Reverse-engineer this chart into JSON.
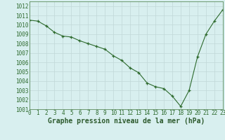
{
  "x": [
    0,
    1,
    2,
    3,
    4,
    5,
    6,
    7,
    8,
    9,
    10,
    11,
    12,
    13,
    14,
    15,
    16,
    17,
    18,
    19,
    20,
    21,
    22,
    23
  ],
  "y": [
    1010.5,
    1010.4,
    1009.9,
    1009.2,
    1008.8,
    1008.7,
    1008.3,
    1008.0,
    1007.7,
    1007.4,
    1006.7,
    1006.2,
    1005.4,
    1004.9,
    1003.8,
    1003.4,
    1003.2,
    1002.4,
    1001.3,
    1003.0,
    1006.6,
    1009.0,
    1010.4,
    1011.6
  ],
  "line_color": "#2d6a2d",
  "marker": "+",
  "bg_color": "#d8efef",
  "grid_color": "#c0d8d8",
  "xlabel": "Graphe pression niveau de la mer (hPa)",
  "xlabel_color": "#2d5a2d",
  "ylabel_ticks": [
    1001,
    1002,
    1003,
    1004,
    1005,
    1006,
    1007,
    1008,
    1009,
    1010,
    1011,
    1012
  ],
  "xlim": [
    0,
    23
  ],
  "ylim": [
    1001.0,
    1012.5
  ],
  "xtick_labels": [
    "0",
    "1",
    "2",
    "3",
    "4",
    "5",
    "6",
    "7",
    "8",
    "9",
    "10",
    "11",
    "12",
    "13",
    "14",
    "15",
    "16",
    "17",
    "18",
    "19",
    "20",
    "21",
    "22",
    "23"
  ],
  "border_color": "#5a8a5a",
  "tick_fontsize": 5.5,
  "xlabel_fontsize": 7.0
}
